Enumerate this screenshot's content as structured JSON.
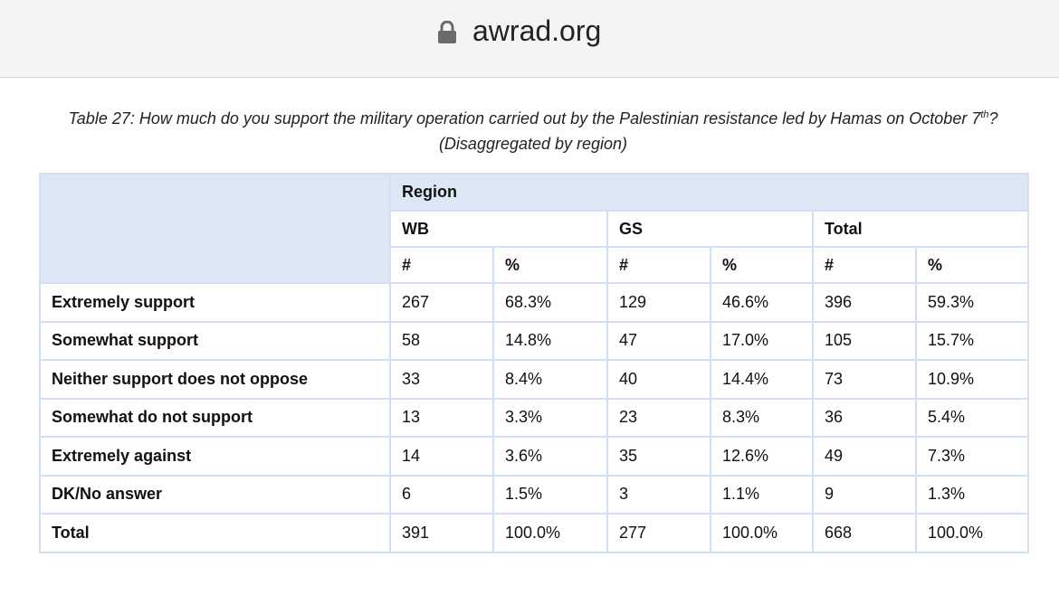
{
  "browser": {
    "url": "awrad.org"
  },
  "caption": {
    "before": "Table 27: How much do you support the military operation carried out by the Palestinian resistance led by Hamas on October 7",
    "sup": "th",
    "after": "? (Disaggregated by region)"
  },
  "table": {
    "region": "Region",
    "groups": [
      "WB",
      "GS",
      "Total"
    ],
    "subheaders": [
      "#",
      "%",
      "#",
      "%",
      "#",
      "%"
    ],
    "rows": [
      [
        "Extremely support",
        "267",
        "68.3%",
        "129",
        "46.6%",
        "396",
        "59.3%"
      ],
      [
        "Somewhat support",
        "58",
        "14.8%",
        "47",
        "17.0%",
        "105",
        "15.7%"
      ],
      [
        "Neither support does not oppose",
        "33",
        "8.4%",
        "40",
        "14.4%",
        "73",
        "10.9%"
      ],
      [
        "Somewhat do not support",
        "13",
        "3.3%",
        "23",
        "8.3%",
        "36",
        "5.4%"
      ],
      [
        "Extremely against",
        "14",
        "3.6%",
        "35",
        "12.6%",
        "49",
        "7.3%"
      ],
      [
        "DK/No answer",
        "6",
        "1.5%",
        "3",
        "1.1%",
        "9",
        "1.3%"
      ],
      [
        "Total",
        "391",
        "100.0%",
        "277",
        "100.0%",
        "668",
        "100.0%"
      ]
    ]
  }
}
